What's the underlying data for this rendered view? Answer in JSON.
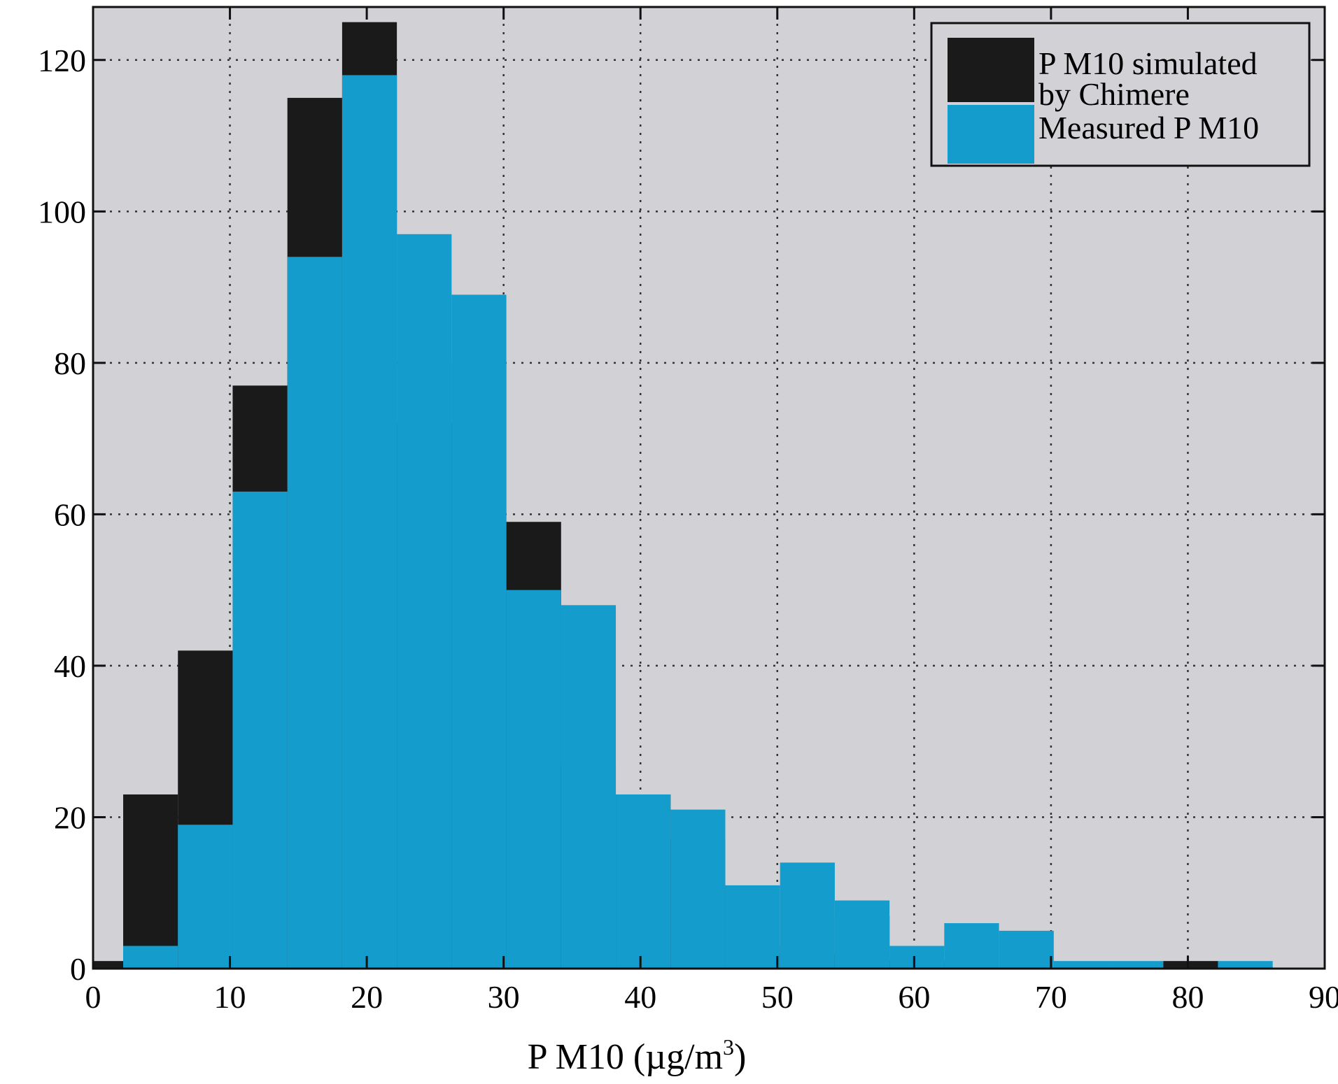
{
  "chart_data": {
    "type": "bar",
    "subtype": "overlaid-histogram",
    "title": "",
    "xlabel": "P M10 (µg/m",
    "xlabel_superscript": "3",
    "xlabel_close": ")",
    "ylabel": "",
    "xlim": [
      0,
      90
    ],
    "ylim": [
      0,
      127
    ],
    "x_ticks": [
      0,
      10,
      20,
      30,
      40,
      50,
      60,
      70,
      80,
      90
    ],
    "x_tick_labels": [
      "0",
      "10",
      "20",
      "30",
      "40",
      "50",
      "60",
      "70",
      "80",
      "90"
    ],
    "y_ticks": [
      0,
      20,
      40,
      60,
      80,
      100,
      120
    ],
    "y_tick_labels": [
      "0",
      "20",
      "40",
      "60",
      "80",
      "100",
      "120"
    ],
    "grid": true,
    "bin_edges": [
      -1.8,
      2.2,
      6.2,
      10.2,
      14.2,
      18.2,
      22.2,
      26.2,
      30.2,
      34.2,
      38.2,
      42.2,
      46.2,
      50.2,
      54.2,
      58.2,
      62.2,
      66.2,
      70.2,
      74.2,
      78.2,
      82.2,
      86.2
    ],
    "series": [
      {
        "name": "P M10 simulated by Chimere",
        "legend_lines": [
          "P M10 simulated",
          "by Chimere"
        ],
        "color": "#1a1a1a",
        "values": [
          1,
          23,
          42,
          77,
          115,
          125,
          72,
          80,
          59,
          27,
          23,
          17,
          3,
          2,
          7,
          1,
          0,
          0,
          0,
          0,
          1,
          0
        ]
      },
      {
        "name": "Measured P M10",
        "legend_lines": [
          "Measured P M10"
        ],
        "color": "#149ccc",
        "values": [
          0,
          3,
          19,
          63,
          94,
          118,
          97,
          89,
          50,
          48,
          23,
          21,
          11,
          14,
          9,
          3,
          6,
          5,
          1,
          1,
          0,
          1
        ]
      }
    ],
    "legend_position": "top-right",
    "colors": {
      "plot_background": "#d2d2d6",
      "grid": "#333333",
      "axes": "#111111"
    }
  }
}
